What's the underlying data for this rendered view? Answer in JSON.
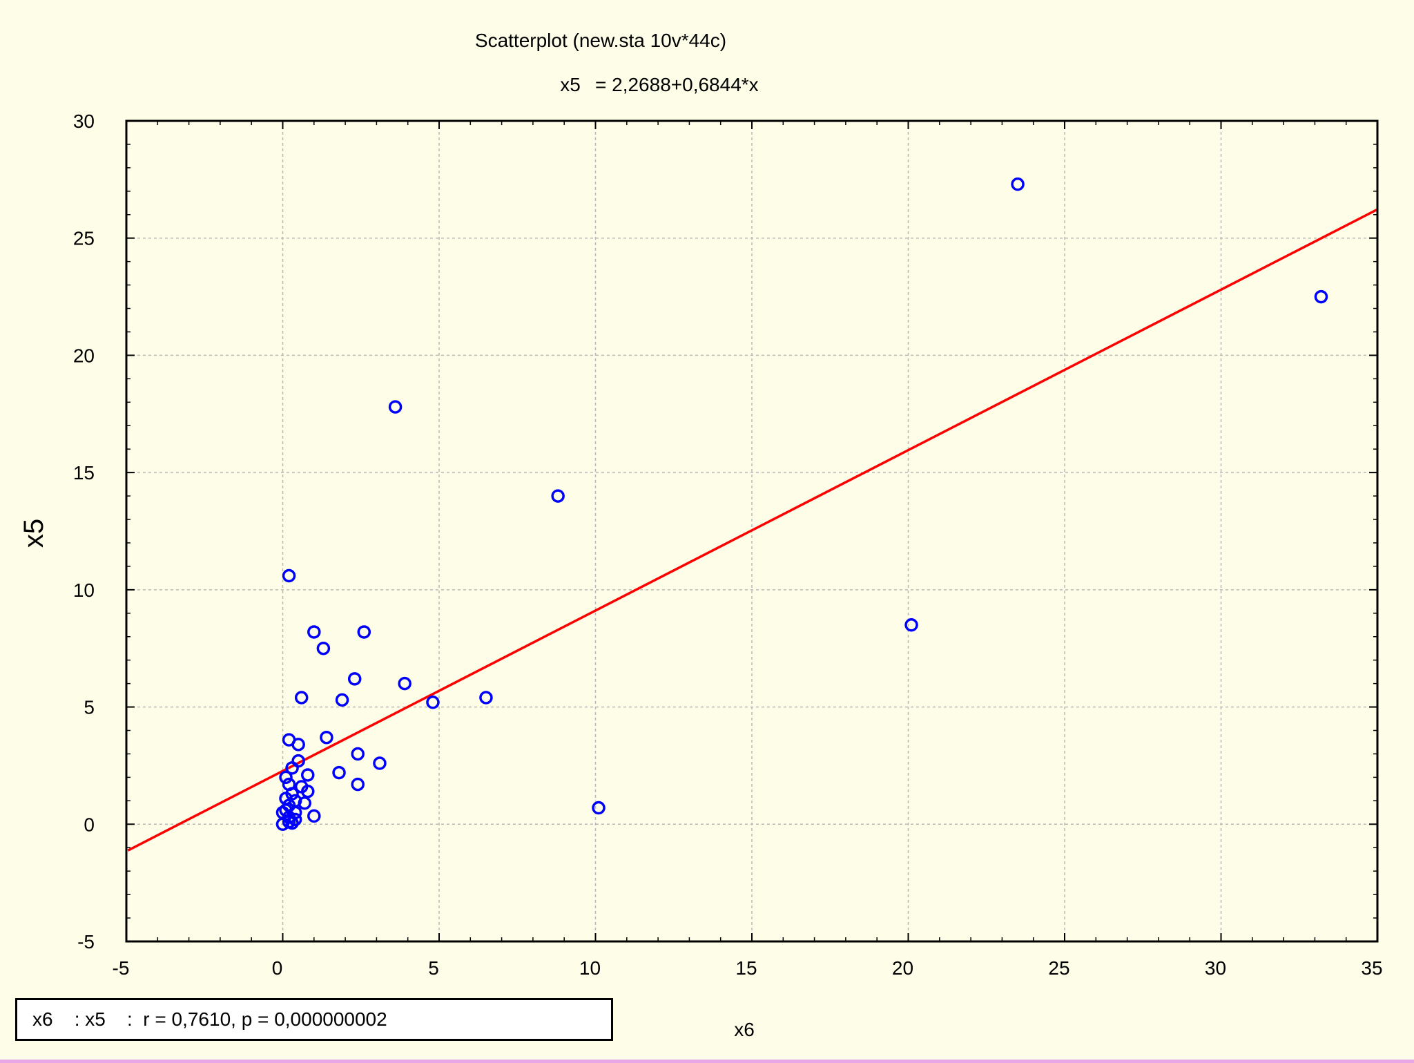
{
  "chart_data": {
    "type": "scatter",
    "title": "Scatterplot (new.sta 10v*44c)",
    "subtitle_var": "x5",
    "subtitle_eq": "= 2,2688+0,6844*x",
    "xlabel": "x6",
    "ylabel": "x5",
    "xlim": [
      -5,
      35
    ],
    "ylim": [
      -5,
      30
    ],
    "x_ticks": [
      -5,
      0,
      5,
      10,
      15,
      20,
      25,
      30,
      35
    ],
    "y_ticks": [
      -5,
      0,
      5,
      10,
      15,
      20,
      25,
      30
    ],
    "x_tick_labels": [
      "-5",
      "0",
      "5",
      "10",
      "15",
      "20",
      "25",
      "30",
      "35"
    ],
    "y_tick_labels": [
      "-5",
      "0",
      "5",
      "10",
      "15",
      "20",
      "25",
      "30"
    ],
    "grid": true,
    "regression": {
      "intercept": 2.2688,
      "slope": 0.6844
    },
    "series": [
      {
        "points": [
          [
            23.5,
            27.3
          ],
          [
            33.2,
            22.5
          ],
          [
            3.6,
            17.8
          ],
          [
            8.8,
            14.0
          ],
          [
            0.2,
            10.6
          ],
          [
            20.1,
            8.5
          ],
          [
            1.0,
            8.2
          ],
          [
            2.6,
            8.2
          ],
          [
            1.3,
            7.5
          ],
          [
            2.3,
            6.2
          ],
          [
            3.9,
            6.0
          ],
          [
            0.6,
            5.4
          ],
          [
            6.5,
            5.4
          ],
          [
            1.9,
            5.3
          ],
          [
            4.8,
            5.2
          ],
          [
            0.2,
            3.6
          ],
          [
            1.4,
            3.7
          ],
          [
            0.5,
            3.4
          ],
          [
            2.4,
            3.0
          ],
          [
            0.5,
            2.7
          ],
          [
            3.1,
            2.6
          ],
          [
            0.3,
            2.4
          ],
          [
            1.8,
            2.2
          ],
          [
            0.8,
            2.1
          ],
          [
            0.1,
            2.0
          ],
          [
            2.4,
            1.7
          ],
          [
            0.8,
            1.4
          ],
          [
            0.3,
            1.3
          ],
          [
            0.1,
            1.1
          ],
          [
            0.4,
            1.0
          ],
          [
            0.2,
            0.8
          ],
          [
            10.1,
            0.7
          ],
          [
            0.4,
            0.5
          ],
          [
            0.0,
            0.5
          ],
          [
            1.0,
            0.35
          ],
          [
            0.2,
            0.3
          ],
          [
            0.4,
            0.2
          ],
          [
            0.2,
            0.1
          ],
          [
            0.0,
            0.0
          ],
          [
            0.3,
            0.05
          ],
          [
            0.1,
            0.6
          ],
          [
            0.6,
            1.6
          ],
          [
            0.2,
            1.7
          ],
          [
            0.7,
            0.9
          ]
        ]
      }
    ],
    "colors": {
      "points": "#0000ff",
      "line": "#ff0000",
      "grid": "#b8b8b8"
    },
    "stat_box": "x6    : x5    :  r = 0,7610, p = 0,000000002"
  }
}
